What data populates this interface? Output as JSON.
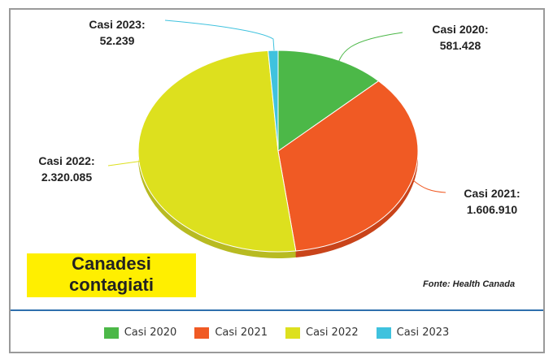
{
  "chart_data": {
    "type": "pie",
    "title": "Canadesi contagiati",
    "title_line1": "Canadesi",
    "title_line2": "contagiati",
    "source": "Fonte: Health Canada",
    "legend_position": "bottom",
    "slices": [
      {
        "name": "Casi 2020",
        "label": "Casi 2020:",
        "value_text": "581.428",
        "value": 581428,
        "color": "#4cb848",
        "side": "#3d9a3a"
      },
      {
        "name": "Casi 2021",
        "label": "Casi 2021:",
        "value_text": "1.606.910",
        "value": 1606910,
        "color": "#f05a24",
        "side": "#c9441b"
      },
      {
        "name": "Casi 2022",
        "label": "Casi 2022:",
        "value_text": "2.320.085",
        "value": 2320085,
        "color": "#dde01e",
        "side": "#b8bb22"
      },
      {
        "name": "Casi 2023",
        "label": "Casi 2023:",
        "value_text": "52.239",
        "value": 52239,
        "color": "#3fc2de",
        "side": "#2f9fb8"
      }
    ]
  }
}
